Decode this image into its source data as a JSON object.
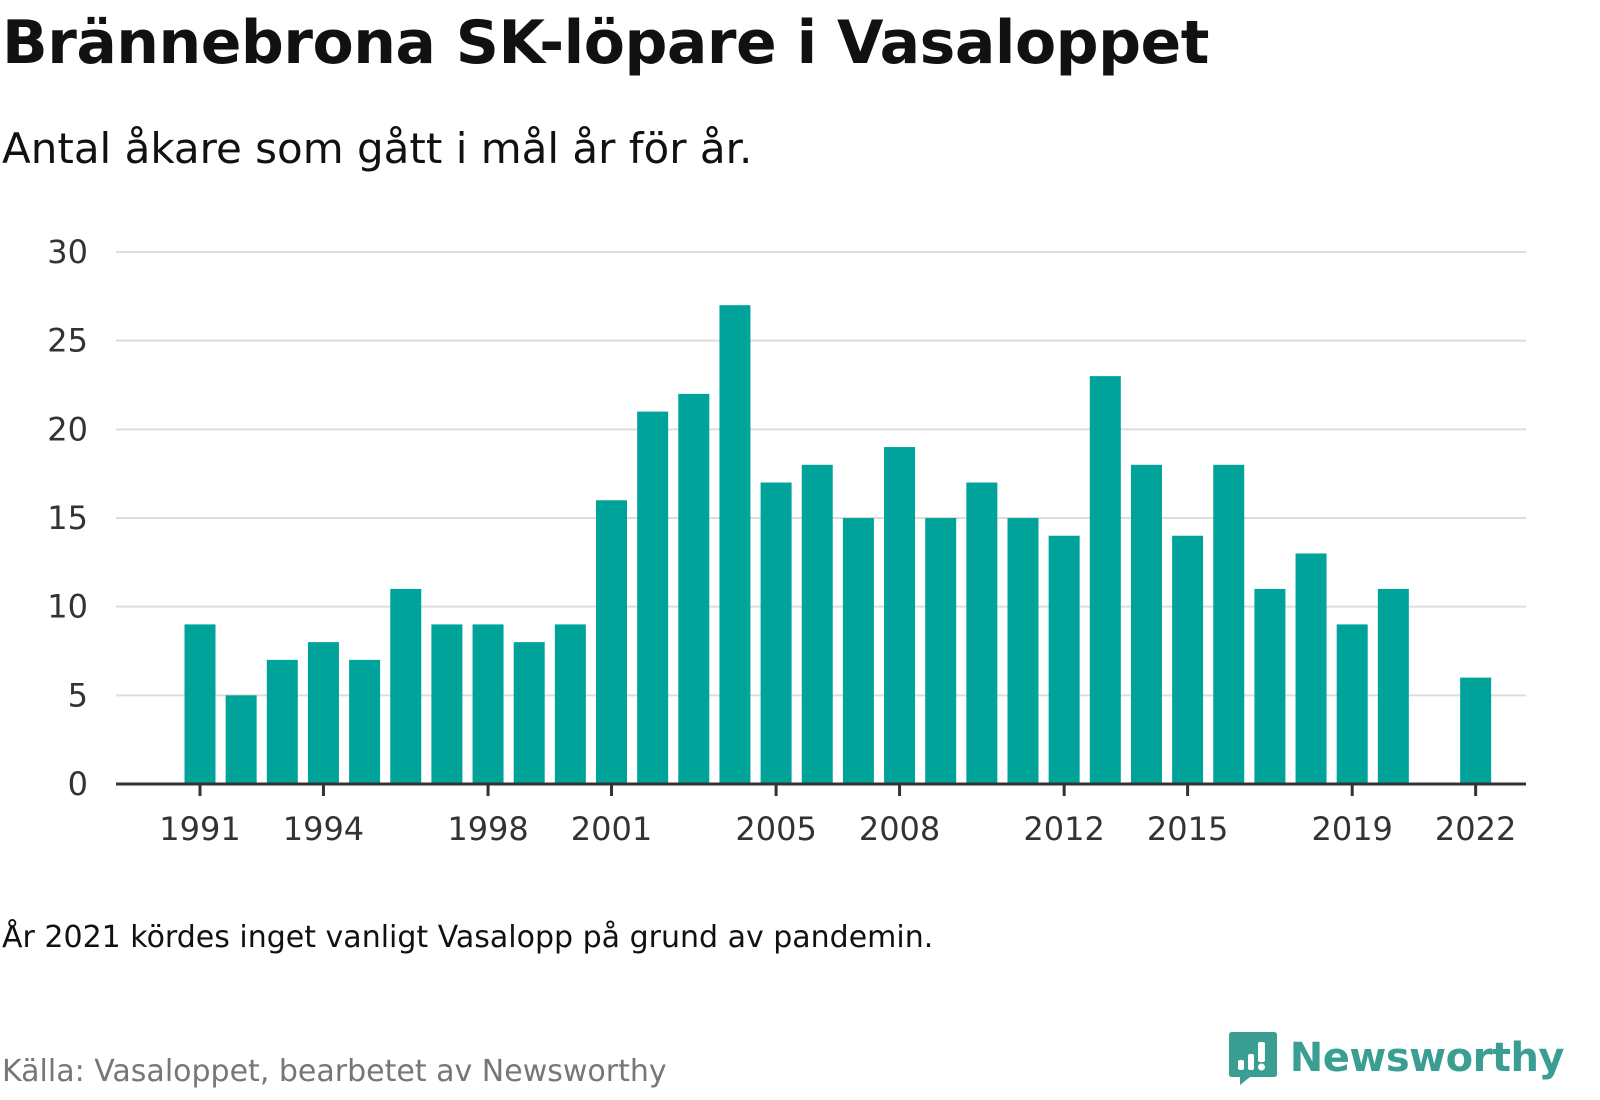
{
  "title": "Brännebrona SK-löpare i Vasaloppet",
  "subtitle": "Antal åkare som gått i mål år för år.",
  "note": "År 2021 kördes inget vanligt Vasalopp på grund av pandemin.",
  "source": "Källa: Vasaloppet, bearbetet av Newsworthy",
  "brand": {
    "name": "Newsworthy",
    "icon": "newsworthy-logo-icon",
    "color": "#3a9e93"
  },
  "chart_data": {
    "type": "bar",
    "x": [
      1991,
      1992,
      1993,
      1994,
      1995,
      1996,
      1997,
      1998,
      1999,
      2000,
      2001,
      2002,
      2003,
      2004,
      2005,
      2006,
      2007,
      2008,
      2009,
      2010,
      2011,
      2012,
      2013,
      2014,
      2015,
      2016,
      2017,
      2018,
      2019,
      2020,
      2021,
      2022
    ],
    "values": [
      9,
      5,
      7,
      8,
      7,
      11,
      9,
      9,
      8,
      9,
      16,
      21,
      22,
      27,
      17,
      18,
      15,
      19,
      15,
      17,
      15,
      14,
      23,
      18,
      14,
      18,
      11,
      13,
      9,
      11,
      null,
      6
    ],
    "x_tick_labels": [
      "1991",
      "1994",
      "1998",
      "2001",
      "2005",
      "2008",
      "2012",
      "2015",
      "2019",
      "2022"
    ],
    "y_ticks": [
      0,
      5,
      10,
      15,
      20,
      25,
      30
    ],
    "ylim": [
      0,
      30
    ],
    "bar_color": "#00a39a",
    "grid": true,
    "xlabel": "",
    "ylabel": ""
  }
}
